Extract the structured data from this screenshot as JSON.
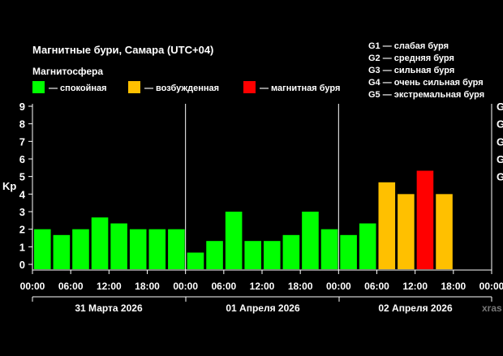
{
  "header": {
    "title": "Магнитные бури, Самара (UTC+04)",
    "subtitle": "Магнитосфера"
  },
  "legend": [
    {
      "label": "— спокойная",
      "color": "#00ff00"
    },
    {
      "label": "— возбужденная",
      "color": "#ffc000"
    },
    {
      "label": "— магнитная буря",
      "color": "#ff0000"
    }
  ],
  "g_scale": [
    "G1 — слабая буря",
    "G2 — средняя буря",
    "G3 — сильная буря",
    "G4 — очень сильная буря",
    "G5 — экстремальная буря"
  ],
  "right_axis_labels": [
    "G",
    "G",
    "G",
    "G",
    "G"
  ],
  "day_labels": [
    "31 Марта 2026",
    "01 Апреля 2026",
    "02 Апреля 2026"
  ],
  "watermark": "xras",
  "colors": {
    "calm": "#00ff00",
    "active": "#ffc000",
    "storm": "#ff0000",
    "text": "#ffffff"
  },
  "chart_data": {
    "type": "bar",
    "ylabel": "Kp",
    "ylim": [
      0,
      9
    ],
    "y_ticks": [
      0,
      1,
      2,
      3,
      4,
      5,
      6,
      7,
      8,
      9
    ],
    "x_tick_labels": [
      "00:00",
      "06:00",
      "12:00",
      "18:00",
      "00:00",
      "06:00",
      "12:00",
      "18:00",
      "00:00",
      "06:00",
      "12:00",
      "18:00",
      "00:00"
    ],
    "values": [
      2.0,
      1.67,
      2.0,
      2.67,
      2.33,
      2.0,
      2.0,
      2.0,
      0.67,
      1.33,
      3.0,
      1.33,
      1.33,
      1.67,
      3.0,
      2.0,
      1.67,
      2.33,
      4.67,
      4.0,
      5.33,
      4.0
    ],
    "levels": [
      "calm",
      "calm",
      "calm",
      "calm",
      "calm",
      "calm",
      "calm",
      "calm",
      "calm",
      "calm",
      "calm",
      "calm",
      "calm",
      "calm",
      "calm",
      "calm",
      "calm",
      "calm",
      "active",
      "active",
      "storm",
      "active"
    ]
  }
}
